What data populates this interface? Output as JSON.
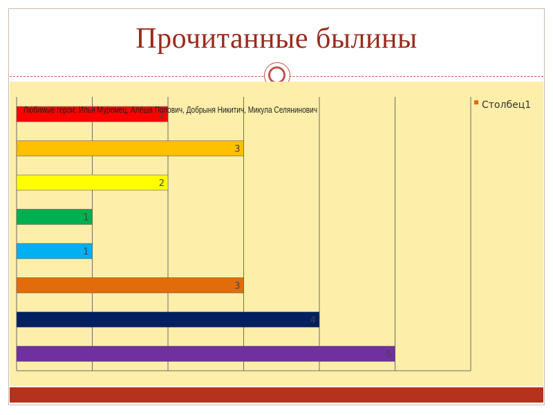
{
  "slide": {
    "title": "Прочитанные былины"
  },
  "chart_data": {
    "type": "bar",
    "orientation": "horizontal",
    "caption": "Любимые герои: Илья Муромец, Алёша Попович, Добрыня Никитич, Микула Селянинович",
    "series": [
      {
        "name": "Столбец1",
        "values": [
          2,
          3,
          2,
          1,
          1,
          3,
          4,
          5
        ]
      }
    ],
    "bar_colors": [
      "#ff0000",
      "#ffc000",
      "#ffff00",
      "#00b050",
      "#00b0f0",
      "#e36c0a",
      "#002060",
      "#7030a0"
    ],
    "xlim": [
      0,
      6
    ],
    "grid": true,
    "legend": "top-right"
  },
  "colors": {
    "title": "#9a2a1c",
    "accent": "#c0524a",
    "chart_background": "#fdeeaa",
    "footer": "#b5321e"
  }
}
